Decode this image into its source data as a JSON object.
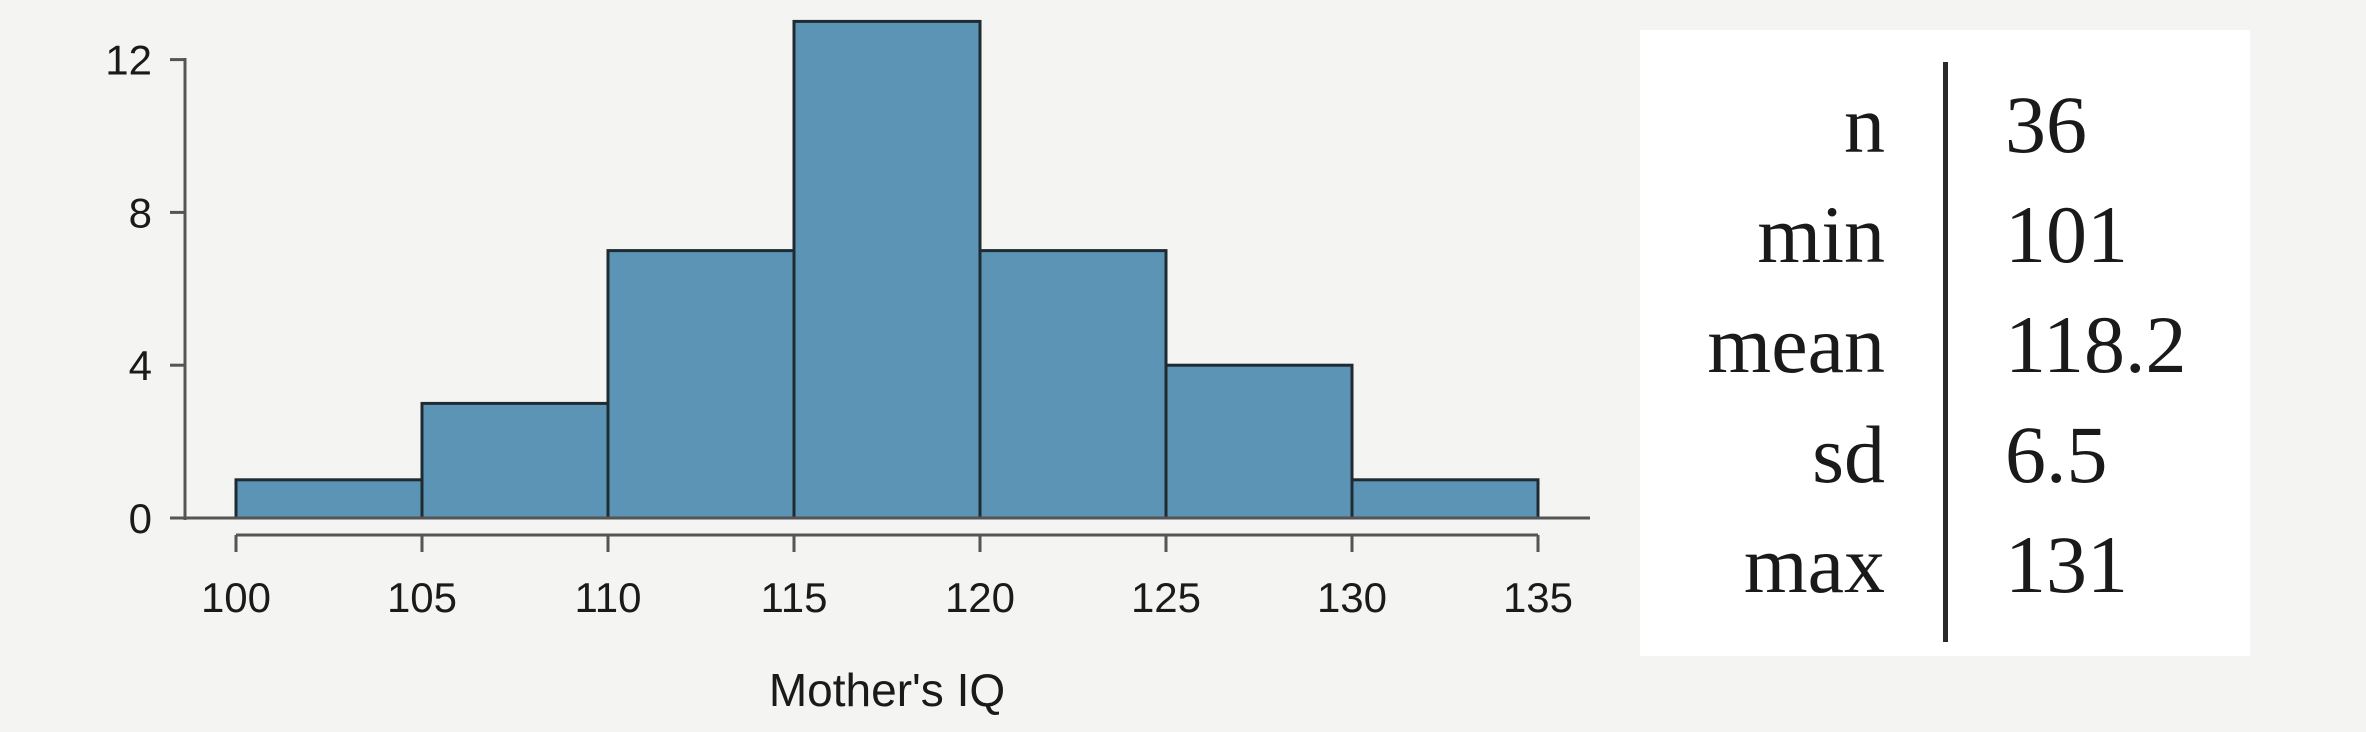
{
  "chart_data": {
    "type": "bar",
    "histogram": true,
    "bins": [
      [
        100,
        105
      ],
      [
        105,
        110
      ],
      [
        110,
        115
      ],
      [
        115,
        120
      ],
      [
        120,
        125
      ],
      [
        125,
        130
      ],
      [
        130,
        135
      ]
    ],
    "values": [
      1,
      3,
      7,
      13,
      7,
      4,
      1
    ],
    "x_ticks": [
      100,
      105,
      110,
      115,
      120,
      125,
      130,
      135
    ],
    "y_ticks": [
      0,
      4,
      8,
      12
    ],
    "xlabel": "Mother's IQ",
    "ylabel": "",
    "xlim": [
      100,
      135
    ],
    "ylim": [
      0,
      13
    ],
    "grid": false,
    "bar_color": "#5b94b4",
    "bar_edge_color": "#1f2b33"
  },
  "stats": [
    {
      "name": "n",
      "value": "36"
    },
    {
      "name": "min",
      "value": "101"
    },
    {
      "name": "mean",
      "value": "118.2"
    },
    {
      "name": "sd",
      "value": "6.5"
    },
    {
      "name": "max",
      "value": "131"
    }
  ]
}
